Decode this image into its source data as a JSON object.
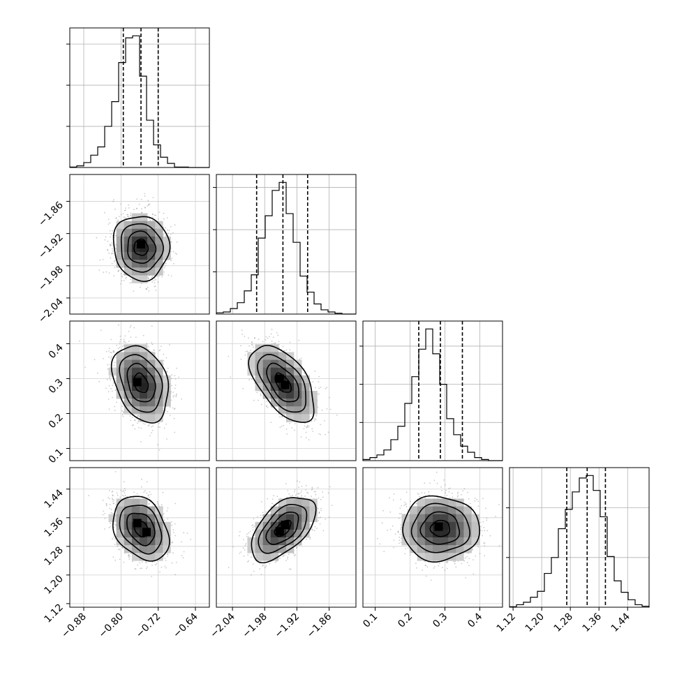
{
  "chart_data": {
    "type": "corner",
    "parameters": [
      {
        "range": [
          -0.91,
          -0.61
        ],
        "ticks": [
          {
            "v": -0.88,
            "label": "−0.88"
          },
          {
            "v": -0.8,
            "label": "−0.80"
          },
          {
            "v": -0.72,
            "label": "−0.72"
          },
          {
            "v": -0.64,
            "label": "−0.64"
          }
        ],
        "quantiles": [
          -0.795,
          -0.757,
          -0.72
        ],
        "hist_start": -0.91,
        "hist_step": 0.015,
        "hist_counts": [
          1,
          4,
          12,
          30,
          50,
          100,
          160,
          255,
          315,
          320,
          222,
          115,
          55,
          25,
          10,
          1,
          1,
          0,
          0,
          0
        ]
      },
      {
        "range": [
          -2.07,
          -1.81
        ],
        "ticks": [
          {
            "v": -2.04,
            "label": "−2.04"
          },
          {
            "v": -1.98,
            "label": "−1.98"
          },
          {
            "v": -1.92,
            "label": "−1.92"
          },
          {
            "v": -1.86,
            "label": "−1.86"
          }
        ],
        "quantiles": [
          -1.995,
          -1.946,
          -1.9
        ],
        "hist_start": -2.07,
        "hist_step": 0.013,
        "hist_counts": [
          3,
          5,
          13,
          27,
          55,
          93,
          180,
          233,
          293,
          312,
          238,
          170,
          90,
          52,
          24,
          10,
          5,
          2,
          0,
          0
        ]
      },
      {
        "range": [
          0.065,
          0.465
        ],
        "ticks": [
          {
            "v": 0.1,
            "label": "0.1"
          },
          {
            "v": 0.2,
            "label": "0.2"
          },
          {
            "v": 0.3,
            "label": "0.3"
          },
          {
            "v": 0.4,
            "label": "0.4"
          }
        ],
        "quantiles": [
          0.225,
          0.287,
          0.35
        ],
        "hist_start": 0.065,
        "hist_step": 0.02,
        "hist_counts": [
          3,
          8,
          15,
          28,
          55,
          90,
          150,
          220,
          292,
          345,
          280,
          200,
          110,
          68,
          38,
          22,
          8,
          3,
          0,
          0
        ]
      },
      {
        "range": [
          1.11,
          1.5
        ],
        "ticks": [
          {
            "v": 1.12,
            "label": "1.12"
          },
          {
            "v": 1.2,
            "label": "1.20"
          },
          {
            "v": 1.28,
            "label": "1.28"
          },
          {
            "v": 1.36,
            "label": "1.36"
          },
          {
            "v": 1.44,
            "label": "1.44"
          }
        ],
        "quantiles": [
          1.27,
          1.327,
          1.378
        ],
        "hist_start": 1.11,
        "hist_step": 0.0195,
        "hist_counts": [
          1,
          5,
          10,
          20,
          32,
          68,
          100,
          158,
          197,
          232,
          260,
          265,
          235,
          182,
          102,
          53,
          30,
          15,
          5,
          2
        ]
      }
    ],
    "pairs": [
      {
        "row": 1,
        "col": 0,
        "mean": [
          -0.757,
          -1.946
        ],
        "sd": [
          0.03,
          0.03
        ],
        "rho": -0.05,
        "peaks": [
          [
            -0.757,
            -1.94
          ]
        ]
      },
      {
        "row": 2,
        "col": 0,
        "mean": [
          -0.757,
          0.287
        ],
        "sd": [
          0.03,
          0.055
        ],
        "rho": -0.3,
        "peaks": [
          [
            -0.765,
            0.29
          ]
        ]
      },
      {
        "row": 2,
        "col": 1,
        "mean": [
          -1.946,
          0.287
        ],
        "sd": [
          0.03,
          0.055
        ],
        "rho": -0.55,
        "peaks": [
          [
            -1.952,
            0.3
          ],
          [
            -1.942,
            0.282
          ]
        ]
      },
      {
        "row": 3,
        "col": 0,
        "mean": [
          -0.757,
          1.33
        ],
        "sd": [
          0.03,
          0.045
        ],
        "rho": -0.3,
        "peaks": [
          [
            -0.765,
            1.345
          ],
          [
            -0.745,
            1.32
          ]
        ]
      },
      {
        "row": 3,
        "col": 1,
        "mean": [
          -1.946,
          1.33
        ],
        "sd": [
          0.03,
          0.045
        ],
        "rho": 0.55,
        "peaks": [
          [
            -1.942,
            1.34
          ],
          [
            -1.952,
            1.322
          ]
        ]
      },
      {
        "row": 3,
        "col": 2,
        "mean": [
          0.287,
          1.33
        ],
        "sd": [
          0.055,
          0.045
        ],
        "rho": 0.0,
        "peaks": [
          [
            0.282,
            1.335
          ]
        ]
      }
    ],
    "contour_levels_sigma": [
      0.5,
      1.0,
      1.5,
      2.0
    ],
    "grid": true
  }
}
